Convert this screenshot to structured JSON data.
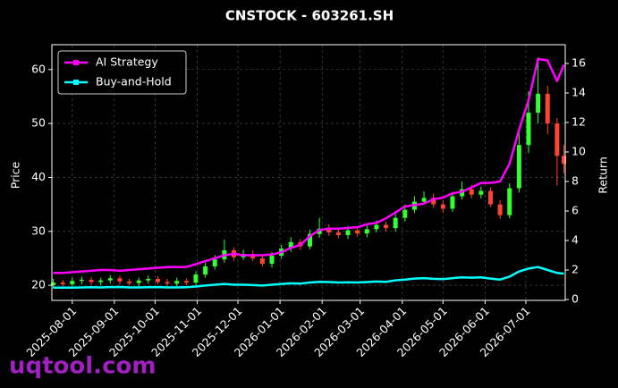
{
  "chart_data": {
    "type": "candlestick",
    "title": "CNSTOCK - 603261.SH",
    "ylabel": "Price",
    "y2label": "Return",
    "watermark": "uqtool.com",
    "x": [
      "2025-07-18",
      "2025-07-25",
      "2025-08-01",
      "2025-08-08",
      "2025-08-15",
      "2025-08-22",
      "2025-08-29",
      "2025-09-05",
      "2025-09-12",
      "2025-09-19",
      "2025-09-26",
      "2025-10-03",
      "2025-10-10",
      "2025-10-17",
      "2025-10-24",
      "2025-10-31",
      "2025-11-07",
      "2025-11-14",
      "2025-11-21",
      "2025-11-28",
      "2025-12-05",
      "2025-12-12",
      "2025-12-19",
      "2025-12-26",
      "2026-01-02",
      "2026-01-09",
      "2026-01-16",
      "2026-01-23",
      "2026-01-30",
      "2026-02-06",
      "2026-02-13",
      "2026-02-20",
      "2026-02-27",
      "2026-03-06",
      "2026-03-13",
      "2026-03-20",
      "2026-03-27",
      "2026-04-03",
      "2026-04-10",
      "2026-04-17",
      "2026-04-24",
      "2026-05-01",
      "2026-05-08",
      "2026-05-15",
      "2026-05-22",
      "2026-05-29",
      "2026-06-05",
      "2026-06-12",
      "2026-06-19",
      "2026-06-26",
      "2026-07-03",
      "2026-07-10",
      "2026-07-17",
      "2026-07-24",
      "2026-07-29"
    ],
    "open": [
      20.0,
      20.5,
      20.2,
      20.8,
      21.0,
      20.6,
      20.9,
      21.3,
      20.7,
      20.4,
      20.9,
      21.2,
      20.6,
      20.3,
      20.8,
      20.5,
      22.0,
      23.5,
      24.8,
      26.5,
      25.2,
      25.8,
      25.0,
      24.0,
      25.5,
      26.8,
      28.0,
      27.2,
      29.5,
      30.5,
      29.8,
      29.3,
      30.2,
      29.6,
      30.4,
      31.2,
      30.6,
      32.5,
      34.0,
      35.5,
      36.2,
      35.0,
      34.2,
      36.5,
      37.8,
      36.8,
      37.5,
      35.0,
      33.0,
      38.0,
      46.0,
      52.0,
      55.5,
      50.0,
      44.0
    ],
    "high": [
      21.2,
      21.0,
      21.4,
      21.6,
      21.5,
      21.4,
      21.9,
      21.8,
      21.2,
      21.4,
      21.8,
      21.7,
      21.2,
      21.4,
      21.3,
      22.6,
      24.2,
      25.6,
      28.5,
      27.0,
      26.6,
      26.5,
      25.6,
      26.2,
      27.5,
      28.9,
      28.6,
      30.3,
      32.5,
      31.3,
      30.6,
      31.0,
      30.8,
      31.1,
      32.0,
      31.8,
      33.4,
      35.0,
      36.5,
      37.4,
      37.0,
      35.8,
      37.3,
      39.2,
      38.6,
      38.3,
      38.2,
      35.8,
      38.9,
      49.0,
      56.0,
      62.3,
      57.0,
      51.0,
      46.0
    ],
    "low": [
      19.5,
      19.8,
      19.7,
      20.2,
      20.1,
      20.0,
      20.3,
      20.1,
      20.0,
      19.8,
      20.3,
      20.2,
      19.9,
      19.8,
      20.0,
      20.0,
      21.4,
      22.9,
      24.2,
      24.6,
      24.7,
      24.5,
      23.5,
      23.3,
      24.9,
      26.2,
      26.6,
      26.7,
      28.8,
      29.2,
      28.7,
      28.6,
      29.0,
      28.9,
      29.8,
      30.0,
      30.0,
      31.8,
      33.4,
      34.9,
      34.3,
      33.5,
      33.6,
      35.9,
      36.1,
      36.1,
      34.5,
      32.3,
      32.4,
      37.2,
      44.5,
      50.0,
      48.0,
      38.5,
      40.8
    ],
    "close": [
      20.5,
      20.2,
      20.8,
      21.0,
      20.6,
      20.9,
      21.3,
      20.7,
      20.4,
      20.9,
      21.2,
      20.6,
      20.3,
      20.8,
      20.5,
      22.0,
      23.5,
      24.8,
      26.5,
      25.2,
      25.8,
      25.0,
      24.0,
      25.5,
      26.8,
      28.0,
      27.2,
      29.5,
      30.5,
      29.8,
      29.3,
      30.2,
      29.6,
      30.4,
      31.2,
      30.6,
      32.5,
      34.0,
      35.5,
      36.2,
      35.0,
      34.2,
      36.5,
      37.8,
      36.8,
      37.5,
      35.0,
      33.0,
      38.0,
      46.0,
      52.0,
      55.5,
      50.0,
      44.0,
      42.5
    ],
    "up_color": "#33ff33",
    "down_color": "#ff4433",
    "series": [
      {
        "name": "AI Strategy",
        "color": "#ff00ff",
        "axis": "y2",
        "values": [
          1.8,
          1.8,
          1.85,
          1.9,
          1.95,
          2.0,
          2.0,
          1.95,
          2.0,
          2.05,
          2.1,
          2.15,
          2.2,
          2.2,
          2.2,
          2.4,
          2.6,
          2.8,
          3.0,
          3.1,
          3.0,
          3.0,
          3.0,
          3.05,
          3.2,
          3.5,
          3.7,
          4.3,
          4.7,
          4.8,
          4.8,
          4.85,
          4.9,
          5.1,
          5.2,
          5.5,
          5.9,
          6.3,
          6.4,
          6.5,
          6.8,
          6.9,
          7.2,
          7.3,
          7.6,
          7.9,
          7.9,
          8.0,
          9.2,
          11.5,
          13.5,
          16.3,
          16.2,
          14.8,
          15.9
        ]
      },
      {
        "name": "Buy-and-Hold",
        "color": "#00ffff",
        "axis": "y2",
        "values": [
          0.8,
          0.8,
          0.8,
          0.82,
          0.83,
          0.82,
          0.84,
          0.85,
          0.82,
          0.82,
          0.83,
          0.84,
          0.82,
          0.82,
          0.83,
          0.88,
          0.95,
          1.0,
          1.05,
          1.0,
          1.0,
          0.98,
          0.95,
          1.0,
          1.05,
          1.1,
          1.08,
          1.15,
          1.2,
          1.18,
          1.15,
          1.17,
          1.15,
          1.18,
          1.22,
          1.2,
          1.3,
          1.35,
          1.42,
          1.45,
          1.4,
          1.38,
          1.45,
          1.5,
          1.48,
          1.5,
          1.42,
          1.35,
          1.55,
          1.9,
          2.1,
          2.2,
          2.0,
          1.8,
          1.75
        ]
      }
    ],
    "xlim": [
      "2025-07-17",
      "2026-07-30"
    ],
    "xticks": [
      "2025-08-01",
      "2025-09-01",
      "2025-10-01",
      "2025-11-01",
      "2025-12-01",
      "2026-01-01",
      "2026-02-01",
      "2026-03-01",
      "2026-04-01",
      "2026-05-01",
      "2026-06-01",
      "2026-07-01"
    ],
    "ylim": [
      17.2,
      64.6
    ],
    "yticks": [
      20,
      30,
      40,
      50,
      60
    ],
    "y2lim": [
      -0.06,
      17.27
    ],
    "y2ticks": [
      0,
      2,
      4,
      6,
      8,
      10,
      12,
      14,
      16
    ],
    "grid": true,
    "legend": "upper left"
  }
}
